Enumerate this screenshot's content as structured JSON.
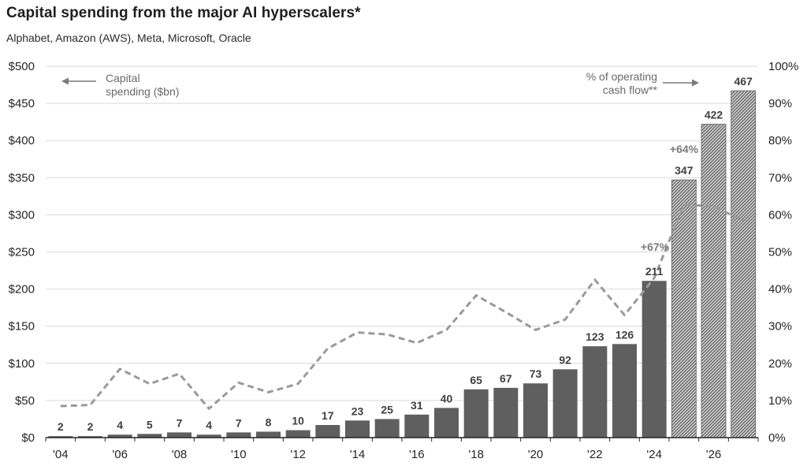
{
  "title": "Capital spending from the major AI hyperscalers*",
  "subtitle": "Alphabet,  Amazon  (AWS), Meta, Microsoft, Oracle",
  "colors": {
    "bar_actual": "#5f5f5f",
    "bar_forecast": "#5f5f5f",
    "line": "#9a9a9a",
    "grid": "#d9d9d9",
    "axis": "#262626"
  },
  "chart_data": {
    "type": "bar",
    "x": [
      2004,
      2005,
      2006,
      2007,
      2008,
      2009,
      2010,
      2011,
      2012,
      2013,
      2014,
      2015,
      2016,
      2017,
      2018,
      2019,
      2020,
      2021,
      2022,
      2023,
      2024,
      2025,
      2026,
      2027
    ],
    "series": [
      {
        "name": "Capital spending ($bn)",
        "type": "bar",
        "axis": "left",
        "values": [
          2,
          2,
          4,
          5,
          7,
          4,
          7,
          8,
          10,
          17,
          23,
          25,
          31,
          40,
          65,
          67,
          73,
          92,
          123,
          126,
          211,
          347,
          422,
          467
        ],
        "labels": [
          "2",
          "2",
          "4",
          "5",
          "7",
          "4",
          "7",
          "8",
          "10",
          "17",
          "23",
          "25",
          "31",
          "40",
          "65",
          "67",
          "73",
          "92",
          "123",
          "126",
          "211",
          "347",
          "422",
          "467"
        ],
        "forecast_from": 2025
      },
      {
        "name": "% of operating cash flow**",
        "type": "line",
        "axis": "right",
        "style": "dashed",
        "values": [
          8.5,
          8.8,
          18.5,
          14.5,
          17.2,
          7.8,
          14.8,
          12.2,
          14.5,
          24.0,
          28.3,
          27.8,
          25.5,
          29.0,
          38.3,
          33.8,
          29.0,
          31.8,
          42.5,
          33.0,
          43.0,
          62.8,
          62.2,
          58.5
        ]
      }
    ],
    "x_tick_labels": [
      "'04",
      "'06",
      "'08",
      "'10",
      "'12",
      "'14",
      "'16",
      "'18",
      "'20",
      "'22",
      "'24",
      "'26"
    ],
    "y_left": {
      "ylim": [
        0,
        500
      ],
      "ticks": [
        "$0",
        "$50",
        "$100",
        "$150",
        "$200",
        "$250",
        "$300",
        "$350",
        "$400",
        "$450",
        "$500"
      ]
    },
    "y_right": {
      "ylim": [
        0,
        100
      ],
      "ticks": [
        "0%",
        "10%",
        "20%",
        "30%",
        "40%",
        "50%",
        "60%",
        "70%",
        "80%",
        "90%",
        "100%"
      ]
    },
    "grid": true,
    "legend": {
      "left_line1": "Capital",
      "left_line2": "spending ($bn)",
      "right_line1": "% of operating",
      "right_line2": "cash flow**"
    },
    "annotations": [
      "+67%",
      "+64%"
    ]
  }
}
